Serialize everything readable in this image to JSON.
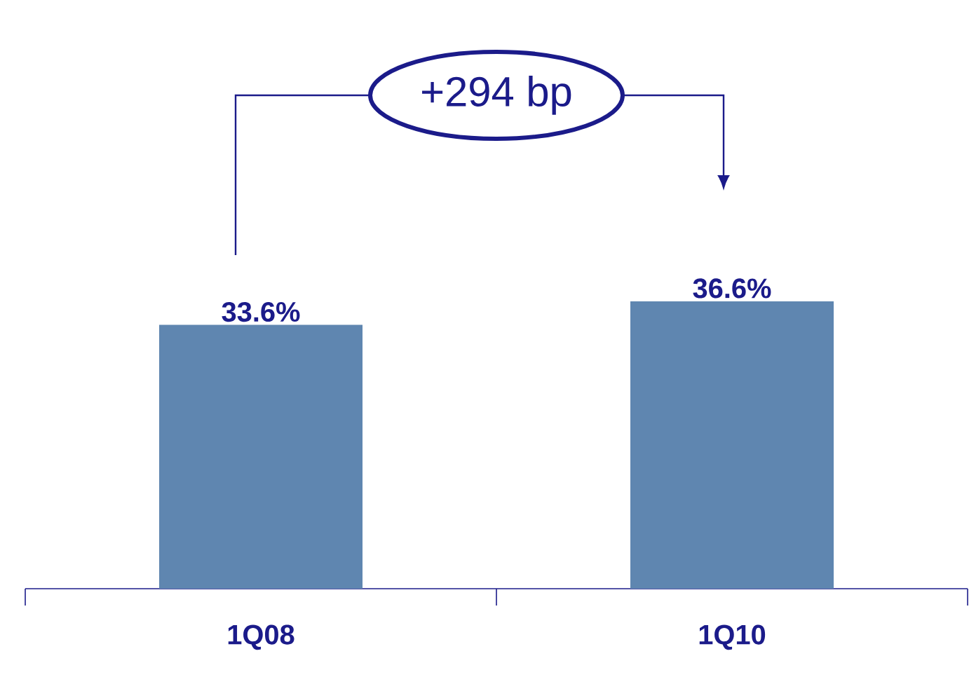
{
  "chart_data": {
    "type": "bar",
    "categories": [
      "1Q08",
      "1Q10"
    ],
    "values": [
      33.6,
      36.6
    ],
    "value_labels": [
      "33.6%",
      "36.6%"
    ],
    "color": "#5f86b0",
    "tick_labels": "x",
    "annotations": [
      "+294 bp"
    ]
  }
}
